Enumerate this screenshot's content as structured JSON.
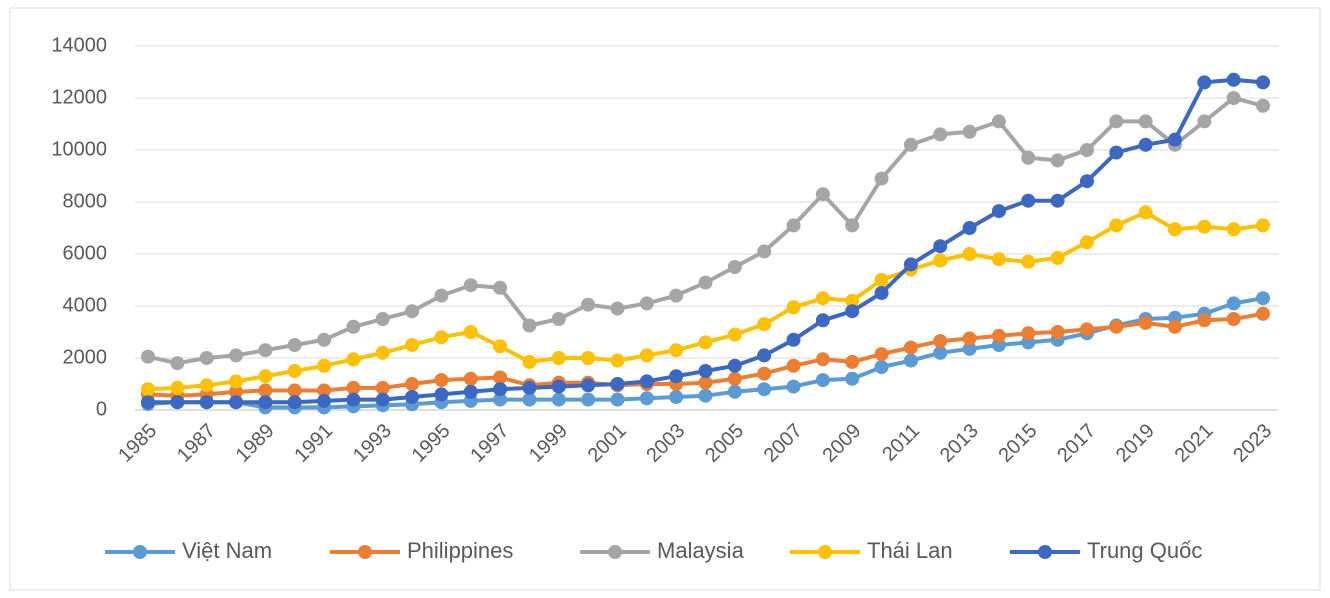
{
  "chart_data": {
    "type": "line",
    "categories": [
      "1985",
      null,
      "1987",
      null,
      "1989",
      null,
      "1991",
      null,
      "1993",
      null,
      "1995",
      null,
      "1997",
      null,
      "1999",
      null,
      "2001",
      null,
      "2003",
      null,
      "2005",
      null,
      "2007",
      null,
      "2009",
      null,
      "2011",
      null,
      "2013",
      null,
      "2015",
      null,
      "2017",
      null,
      "2019",
      null,
      "2021",
      null,
      "2023"
    ],
    "series": [
      {
        "name": "Việt Nam",
        "color": "#5b9bd5",
        "values": [
          230,
          300,
          300,
          300,
          100,
          100,
          100,
          140,
          180,
          220,
          300,
          350,
          400,
          400,
          400,
          400,
          400,
          450,
          500,
          550,
          700,
          800,
          900,
          1150,
          1200,
          1650,
          1900,
          2200,
          2350,
          2500,
          2600,
          2700,
          2950,
          3250,
          3500,
          3550,
          3700,
          4100,
          4300
        ]
      },
      {
        "name": "Philippines",
        "color": "#ed7d31",
        "values": [
          600,
          550,
          600,
          700,
          750,
          750,
          750,
          850,
          850,
          1000,
          1150,
          1200,
          1250,
          950,
          1050,
          1050,
          950,
          1000,
          1000,
          1050,
          1200,
          1400,
          1700,
          1950,
          1850,
          2150,
          2400,
          2650,
          2750,
          2850,
          2950,
          3000,
          3100,
          3200,
          3350,
          3200,
          3450,
          3500,
          3700
        ]
      },
      {
        "name": "Malaysia",
        "color": "#a5a5a5",
        "values": [
          2050,
          1800,
          2000,
          2100,
          2300,
          2500,
          2700,
          3200,
          3500,
          3800,
          4400,
          4800,
          4700,
          3250,
          3500,
          4050,
          3900,
          4100,
          4400,
          4900,
          5500,
          6100,
          7100,
          8300,
          7100,
          8900,
          10200,
          10600,
          10700,
          11100,
          9700,
          9600,
          10000,
          11100,
          11100,
          10200,
          11100,
          12000,
          11700
        ]
      },
      {
        "name": "Thái Lan",
        "color": "#ffc000",
        "values": [
          800,
          850,
          950,
          1100,
          1300,
          1500,
          1700,
          1950,
          2200,
          2500,
          2800,
          3000,
          2450,
          1850,
          2000,
          2000,
          1900,
          2100,
          2300,
          2600,
          2900,
          3300,
          3950,
          4300,
          4200,
          5000,
          5400,
          5750,
          6000,
          5800,
          5700,
          5850,
          6450,
          7100,
          7600,
          6950,
          7050,
          6950,
          7100
        ]
      },
      {
        "name": "Trung Quốc",
        "color": "#3a68c2",
        "values": [
          300,
          300,
          300,
          300,
          300,
          300,
          350,
          400,
          400,
          500,
          600,
          700,
          800,
          850,
          900,
          950,
          1000,
          1100,
          1300,
          1500,
          1700,
          2100,
          2700,
          3450,
          3800,
          4500,
          5600,
          6300,
          7000,
          7650,
          8050,
          8050,
          8800,
          9900,
          10200,
          10400,
          12600,
          12700,
          12600
        ]
      }
    ],
    "ylim": [
      0,
      14000
    ],
    "yticks": [
      0,
      2000,
      4000,
      6000,
      8000,
      10000,
      12000,
      14000
    ],
    "grid": true,
    "legend": "bottom"
  }
}
